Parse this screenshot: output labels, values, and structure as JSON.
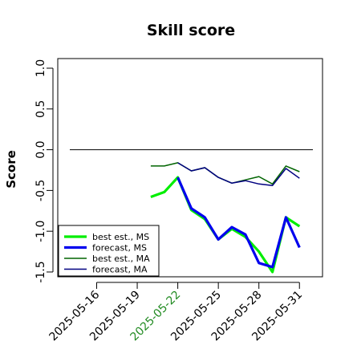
{
  "chart_data": {
    "type": "line",
    "title": "Skill score",
    "xlabel": "",
    "ylabel": "Score",
    "ylim": [
      -1.55,
      1.1
    ],
    "yticks": [
      "1.0",
      "0.5",
      "0.0",
      "-0.5",
      "-1.0",
      "-1.5"
    ],
    "ytick_values": [
      1.0,
      0.5,
      0.0,
      -0.5,
      -1.0,
      -1.5
    ],
    "x_tick_labels": [
      "2025-05-16",
      "2025-05-19",
      "2025-05-22",
      "2025-05-25",
      "2025-05-28",
      "2025-05-31"
    ],
    "x_tick_index": [
      0,
      3,
      6,
      9,
      12,
      15
    ],
    "highlight_tick": "2025-05-22",
    "highlight_color": "#228B22",
    "x_index_range": [
      -2,
      16.8
    ],
    "reference_line": 0.0,
    "x_dates": [
      "2025-05-20",
      "2025-05-21",
      "2025-05-22",
      "2025-05-23",
      "2025-05-24",
      "2025-05-25",
      "2025-05-26",
      "2025-05-27",
      "2025-05-28",
      "2025-05-29",
      "2025-05-30",
      "2025-05-31"
    ],
    "x_index": [
      4,
      5,
      6,
      7,
      8,
      9,
      10,
      11,
      12,
      13,
      14,
      15
    ],
    "series": [
      {
        "name": "best est., MS",
        "color": "#00ee00",
        "width": 3.2,
        "values": [
          -0.58,
          -0.52,
          -0.34,
          -0.74,
          -0.85,
          -1.1,
          -0.97,
          -1.07,
          -1.25,
          -1.5,
          -0.83,
          -0.94
        ]
      },
      {
        "name": "forecast, MS",
        "color": "#0000ee",
        "width": 3.2,
        "values": [
          null,
          null,
          -0.34,
          -0.72,
          -0.83,
          -1.1,
          -0.95,
          -1.04,
          -1.39,
          -1.44,
          -0.83,
          -1.2
        ]
      },
      {
        "name": "best est., MA",
        "color": "#006400",
        "width": 1.5,
        "values": [
          -0.2,
          -0.2,
          -0.16,
          -0.26,
          -0.22,
          -0.34,
          -0.41,
          -0.37,
          -0.33,
          -0.42,
          -0.2,
          -0.27
        ]
      },
      {
        "name": "forecast, MA",
        "color": "#000080",
        "width": 1.5,
        "values": [
          null,
          null,
          -0.16,
          -0.26,
          -0.22,
          -0.34,
          -0.41,
          -0.38,
          -0.42,
          -0.44,
          -0.23,
          -0.35
        ]
      }
    ],
    "legend_position": "bottom-left",
    "grid": false
  }
}
